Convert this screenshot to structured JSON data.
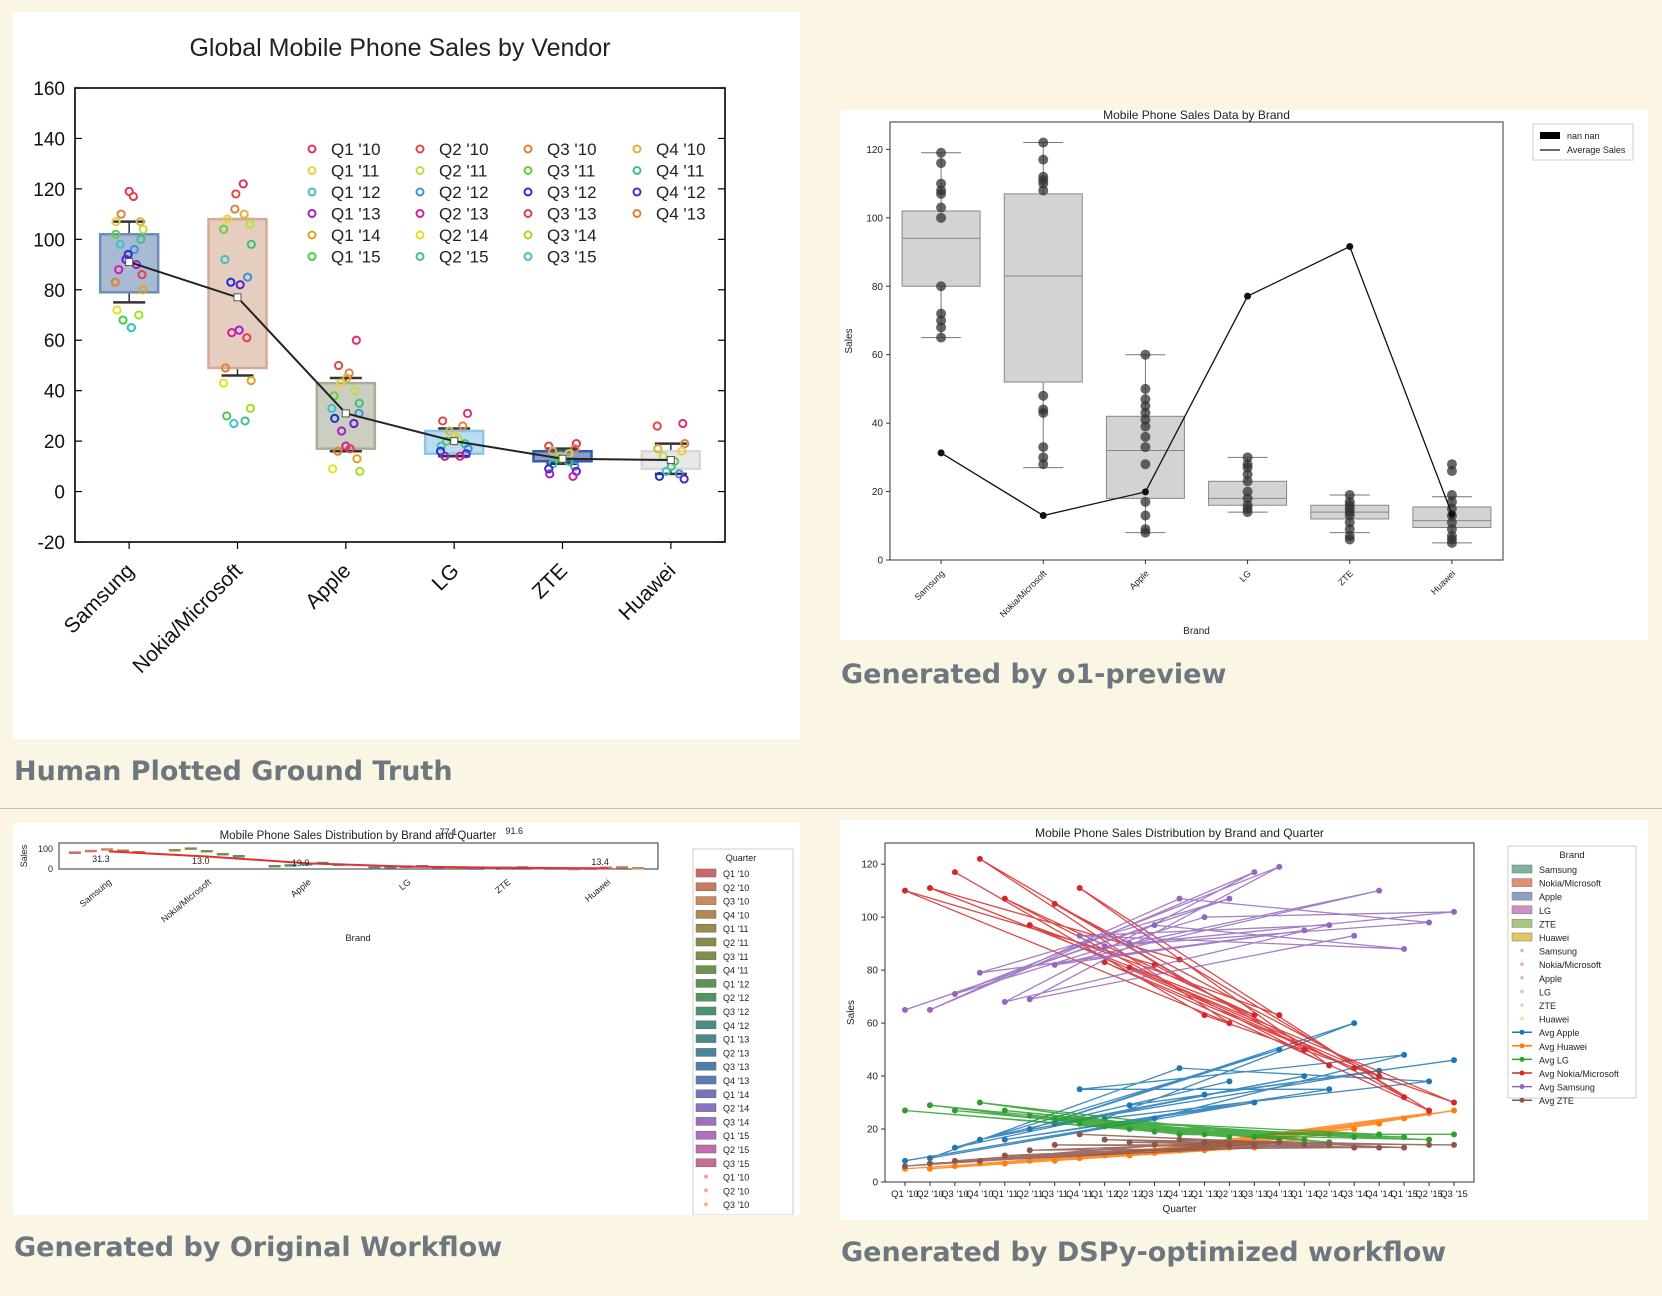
{
  "captions": {
    "gt": "Human Plotted Ground Truth",
    "o1": "Generated by o1-preview",
    "orig": "Generated by Original Workflow",
    "dspy": "Generated by DSPy-optimized workflow"
  },
  "colors": {
    "background": "#fbf5e3",
    "caption": "#6c7780"
  },
  "chart_data": [
    {
      "type": "box",
      "title": "Global Mobile Phone Sales by Vendor",
      "categories": [
        "Samsung",
        "Nokia/Microsoft",
        "Apple",
        "LG",
        "ZTE",
        "Huawei"
      ],
      "ylim": [
        -20,
        160
      ],
      "yticks": [
        -20,
        0,
        20,
        40,
        60,
        80,
        100,
        120,
        140,
        160
      ],
      "boxes": [
        {
          "q1": 79,
          "q3": 102,
          "median": 91,
          "low": 75,
          "high": 107,
          "color": "#6f8db8"
        },
        {
          "q1": 49,
          "q3": 108,
          "median": 77,
          "low": 46,
          "high": 108,
          "color": "#d4ab96"
        },
        {
          "q1": 17,
          "q3": 43,
          "median": 31,
          "low": 16,
          "high": 45,
          "color": "#a9ad96"
        },
        {
          "q1": 15,
          "q3": 24,
          "median": 20,
          "low": 14,
          "high": 25,
          "color": "#8cc5e8"
        },
        {
          "q1": 12,
          "q3": 16,
          "median": 13,
          "low": 11,
          "high": 17,
          "color": "#3a5aa6"
        },
        {
          "q1": 9,
          "q3": 16,
          "median": 12,
          "low": 7,
          "high": 19,
          "color": "#d8d8d8"
        }
      ],
      "mean_line": [
        91,
        77,
        31,
        20,
        13,
        12.5
      ],
      "points": [
        [
          119,
          117,
          110,
          107,
          107,
          104,
          102,
          100,
          98,
          96,
          94,
          92,
          90,
          88,
          86,
          83,
          80,
          72,
          70,
          68,
          65,
          65
        ],
        [
          122,
          118,
          112,
          110,
          108,
          106,
          104,
          98,
          92,
          85,
          83,
          82,
          64,
          63,
          61,
          49,
          44,
          43,
          33,
          30,
          28,
          27
        ],
        [
          60,
          50,
          47,
          45,
          43,
          40,
          38,
          35,
          33,
          31,
          29,
          27,
          24,
          18,
          17,
          16,
          13,
          9,
          8
        ],
        [
          31,
          28,
          26,
          24,
          22,
          21,
          20,
          19,
          18,
          17,
          16,
          15,
          14,
          14
        ],
        [
          19,
          18,
          17,
          16,
          15,
          14,
          13,
          12,
          11,
          10,
          9,
          8,
          7,
          6
        ],
        [
          27,
          26,
          19,
          17,
          16,
          14,
          12,
          10,
          8,
          7,
          6,
          5
        ]
      ],
      "legend": [
        "Q1 '10",
        "Q2 '10",
        "Q3 '10",
        "Q4 '10",
        "Q1 '11",
        "Q2 '11",
        "Q3 '11",
        "Q4 '11",
        "Q1 '12",
        "Q2 '12",
        "Q3 '12",
        "Q4 '12",
        "Q1 '13",
        "Q2 '13",
        "Q3 '13",
        "Q4 '13",
        "Q1 '14",
        "Q2 '14",
        "Q3 '14",
        "Q1 '15",
        "Q2 '15",
        "Q3 '15"
      ],
      "legend_colors": [
        "#e0306a",
        "#e04848",
        "#e08040",
        "#e0b040",
        "#e8d040",
        "#b8e040",
        "#60d040",
        "#40c080",
        "#40c0c0",
        "#4090e0",
        "#2030d0",
        "#6020d0",
        "#a020c0",
        "#d020a0",
        "#e04050",
        "#e08030",
        "#e0a020",
        "#e0e020",
        "#a0e020",
        "#40d040",
        "#40c090",
        "#40c0d0"
      ],
      "legend_rows": [
        4,
        4,
        4,
        4,
        3,
        3
      ]
    },
    {
      "type": "box",
      "title": "Mobile Phone Sales Data by Brand",
      "xlabel": "Brand",
      "ylabel": "Sales",
      "categories": [
        "Samsung",
        "Nokia/Microsoft",
        "Apple",
        "LG",
        "ZTE",
        "Huawei"
      ],
      "ylim": [
        0,
        128
      ],
      "yticks": [
        0,
        20,
        40,
        60,
        80,
        100,
        120
      ],
      "boxes": [
        {
          "q1": 80,
          "q3": 102,
          "median": 94,
          "low": 65,
          "high": 119
        },
        {
          "q1": 52,
          "q3": 107,
          "median": 83,
          "low": 27,
          "high": 122
        },
        {
          "q1": 18,
          "q3": 42,
          "median": 32,
          "low": 8,
          "high": 60
        },
        {
          "q1": 16,
          "q3": 23,
          "median": 18,
          "low": 14,
          "high": 30
        },
        {
          "q1": 12,
          "q3": 16,
          "median": 14,
          "low": 8,
          "high": 19
        },
        {
          "q1": 9.5,
          "q3": 15.5,
          "median": 11.5,
          "low": 5,
          "high": 18.5
        }
      ],
      "outliers": [
        [
          119,
          116,
          110,
          108,
          107,
          103,
          100,
          80,
          72,
          70,
          68,
          65
        ],
        [
          122,
          117,
          112,
          111,
          110,
          108,
          48,
          44,
          43,
          33,
          30,
          28
        ],
        [
          60,
          50,
          47,
          45,
          43,
          41,
          39,
          36,
          33,
          28,
          17,
          13,
          9,
          8
        ],
        [
          30,
          28,
          27,
          25,
          23,
          20,
          18,
          16,
          15,
          14
        ],
        [
          19,
          17,
          16,
          15,
          14,
          13,
          11,
          9,
          7,
          6
        ],
        [
          28,
          26,
          19,
          17,
          15,
          13,
          11,
          9,
          7,
          6,
          5
        ]
      ],
      "mean_line": [
        31.3,
        13.0,
        19.9,
        77.1,
        91.6,
        13.4
      ],
      "legend": [
        "nan nan",
        "Average Sales"
      ]
    },
    {
      "type": "box",
      "title": "Mobile Phone Sales Distribution by Brand and Quarter",
      "xlabel": "Brand",
      "ylabel": "Sales",
      "categories": [
        "Samsung",
        "Nokia/Microsoft",
        "Apple",
        "LG",
        "ZTE",
        "Huawei"
      ],
      "yticks": [
        0,
        100
      ],
      "mean_labels": [
        "31.3",
        "13.0",
        "19.9",
        "77.1",
        "91.6",
        "13.4"
      ],
      "legend_title": "Quarter",
      "legend": [
        "Q1 '10",
        "Q2 '10",
        "Q3 '10",
        "Q4 '10",
        "Q1 '11",
        "Q2 '11",
        "Q3 '11",
        "Q4 '11",
        "Q1 '12",
        "Q2 '12",
        "Q3 '12",
        "Q4 '12",
        "Q1 '13",
        "Q2 '13",
        "Q3 '13",
        "Q4 '13",
        "Q1 '14",
        "Q2 '14",
        "Q3 '14",
        "Q1 '15",
        "Q2 '15",
        "Q3 '15",
        "Q1 '10",
        "Q2 '10",
        "Q3 '10"
      ],
      "legend_colors": [
        "#c96a6a",
        "#c97a62",
        "#c98a5c",
        "#b08a52",
        "#9a8a4e",
        "#8a8c4c",
        "#7a904c",
        "#6c944e",
        "#5c9656",
        "#50965e",
        "#4a9470",
        "#4a8e80",
        "#4a8a8e",
        "#4a849a",
        "#527ca8",
        "#6078b4",
        "#7476bc",
        "#8874c0",
        "#9c72c0",
        "#b070bc",
        "#c06eb0",
        "#c86c96",
        "#f0a0a0",
        "#f0b090",
        "#f0b880"
      ]
    },
    {
      "type": "line",
      "title": "Mobile Phone Sales Distribution by Brand and Quarter",
      "xlabel": "Quarter",
      "ylabel": "Sales",
      "x": [
        "Q1 '10",
        "Q2 '10",
        "Q3 '10",
        "Q4 '10",
        "Q1 '11",
        "Q2 '11",
        "Q3 '11",
        "Q4 '11",
        "Q1 '12",
        "Q2 '12",
        "Q3 '12",
        "Q4 '12",
        "Q1 '13",
        "Q2 '13",
        "Q3 '13",
        "Q4 '13",
        "Q1 '14",
        "Q2 '14",
        "Q3 '14",
        "Q4 '14",
        "Q1 '15",
        "Q2 '15",
        "Q3 '15"
      ],
      "xtick_labels": [
        "Q1 '10",
        "Q2 '10",
        "Q3 '10",
        "Q4 '10",
        "Q1 '11",
        "Q2 '11",
        "Q3 '11",
        "Q4 '11",
        "Q1 '12",
        "Q2 '12",
        "Q3 '12",
        "Q4 '12",
        "Q1 '13",
        "Q2 '13",
        "Q3 '13",
        "Q4 '13",
        "Q1 '14",
        "Q2 '14",
        "Q3 '14",
        "Q4 '14",
        "Q1 '15",
        "Q2 '15",
        "Q3 '15"
      ],
      "ylim": [
        0,
        128
      ],
      "yticks": [
        0,
        20,
        40,
        60,
        80,
        100,
        120
      ],
      "series": [
        {
          "name": "Avg Apple",
          "color": "#1f77b4",
          "values": [
            8,
            9,
            13,
            16,
            16,
            20,
            22,
            35,
            24,
            29,
            24,
            43,
            33,
            38,
            30,
            50,
            40,
            35,
            60,
            42,
            48,
            38,
            46
          ]
        },
        {
          "name": "Avg Huawei",
          "color": "#ff7f0e",
          "values": [
            5,
            5,
            6,
            7,
            7,
            8,
            8,
            9,
            10,
            10,
            11,
            12,
            12,
            13,
            13,
            15,
            16,
            18,
            20,
            22,
            24,
            26,
            27
          ]
        },
        {
          "name": "Avg LG",
          "color": "#2ca02c",
          "values": [
            27,
            29,
            27,
            30,
            27,
            25,
            24,
            22,
            21,
            20,
            19,
            18,
            18,
            17,
            17,
            16,
            16,
            15,
            17,
            18,
            17,
            16,
            18
          ]
        },
        {
          "name": "Avg Nokia/Microsoft",
          "color": "#d62728",
          "values": [
            110,
            111,
            117,
            122,
            107,
            97,
            105,
            111,
            83,
            81,
            82,
            84,
            63,
            60,
            63,
            63,
            50,
            44,
            43,
            40,
            32,
            27,
            30
          ]
        },
        {
          "name": "Avg Samsung",
          "color": "#9467bd",
          "values": [
            65,
            65,
            71,
            79,
            68,
            69,
            82,
            93,
            89,
            90,
            97,
            107,
            100,
            107,
            117,
            119,
            95,
            97,
            93,
            110,
            88,
            98,
            102
          ]
        },
        {
          "name": "Avg ZTE",
          "color": "#8c564b",
          "values": [
            6,
            7,
            8,
            8,
            10,
            12,
            14,
            18,
            16,
            15,
            14,
            16,
            15,
            14,
            14,
            15,
            14,
            14,
            13,
            13,
            13,
            14,
            14
          ]
        }
      ],
      "legend_title": "Brand",
      "legend": [
        "Samsung",
        "Nokia/Microsoft",
        "Apple",
        "LG",
        "ZTE",
        "Huawei",
        "Samsung",
        "Nokia/Microsoft",
        "Apple",
        "LG",
        "ZTE",
        "Huawei",
        "Avg Apple",
        "Avg Huawei",
        "Avg LG",
        "Avg Nokia/Microsoft",
        "Avg Samsung",
        "Avg ZTE"
      ],
      "legend_colors": [
        "#7fb3a0",
        "#e09070",
        "#8fa0c8",
        "#d090c0",
        "#a8c880",
        "#e0c860",
        "#a8d0c0",
        "#f0b890",
        "#b8c8e0",
        "#e8b8d8",
        "#c8e0a8",
        "#f0e0a0",
        "#1f77b4",
        "#ff7f0e",
        "#2ca02c",
        "#d62728",
        "#9467bd",
        "#8c564b"
      ]
    }
  ]
}
